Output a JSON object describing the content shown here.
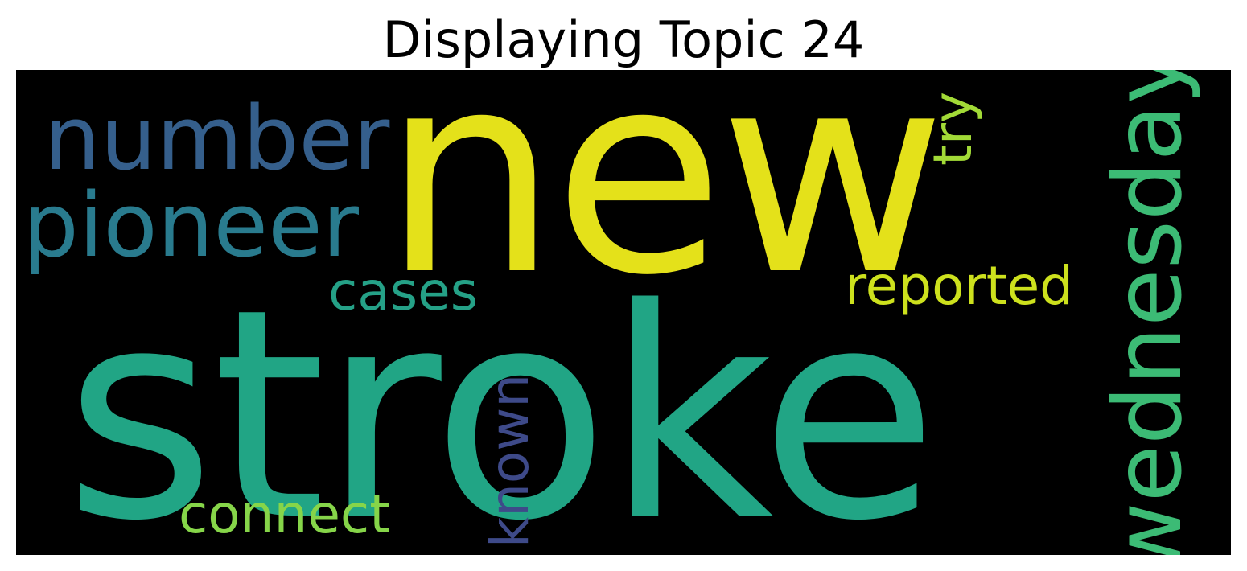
{
  "figure": {
    "title": "Displaying Topic 24"
  },
  "wordcloud": {
    "background_color": "#000000",
    "words": {
      "stroke": {
        "text": "stroke",
        "color": "#21a585",
        "orientation": "horizontal"
      },
      "new": {
        "text": "new",
        "color": "#e4e11a",
        "orientation": "horizontal"
      },
      "number": {
        "text": "number",
        "color": "#355f8c",
        "orientation": "horizontal"
      },
      "pioneer": {
        "text": "pioneer",
        "color": "#297b8e",
        "orientation": "horizontal"
      },
      "wednesday": {
        "text": "wednesday",
        "color": "#3cbb75",
        "orientation": "vertical"
      },
      "cases": {
        "text": "cases",
        "color": "#25a187",
        "orientation": "horizontal"
      },
      "reported": {
        "text": "reported",
        "color": "#cde11d",
        "orientation": "horizontal"
      },
      "try": {
        "text": "try",
        "color": "#a2da37",
        "orientation": "vertical"
      },
      "known": {
        "text": "known",
        "color": "#3e4a89",
        "orientation": "vertical"
      },
      "connect": {
        "text": "connect",
        "color": "#86d549",
        "orientation": "horizontal"
      }
    }
  }
}
